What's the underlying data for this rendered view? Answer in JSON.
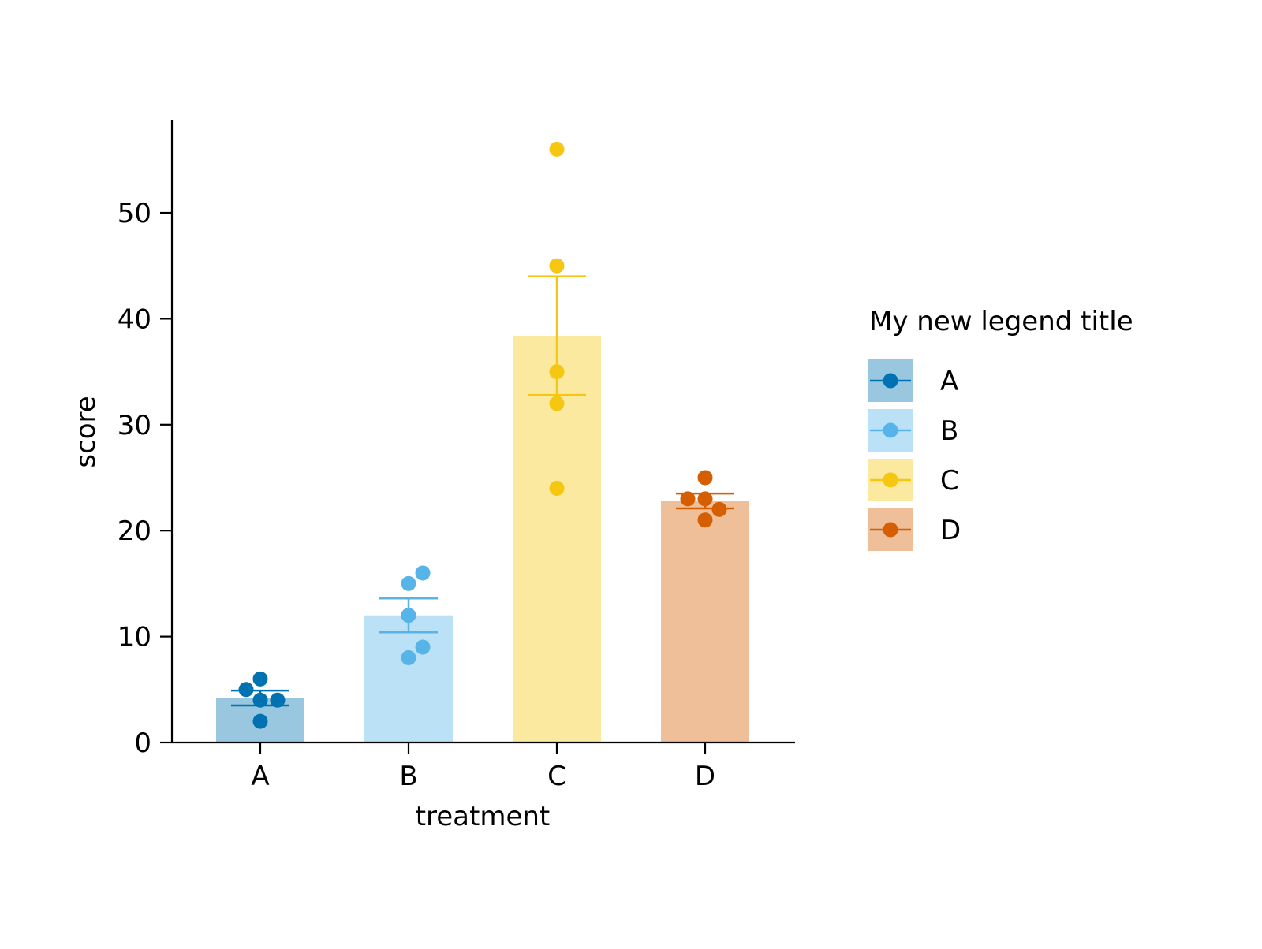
{
  "chart_data": {
    "type": "bar",
    "categories": [
      "A",
      "B",
      "C",
      "D"
    ],
    "xlabel": "treatment",
    "ylabel": "score",
    "ylim": [
      0,
      58.5
    ],
    "yticks": [
      0,
      10,
      20,
      30,
      40,
      50
    ],
    "grid": false,
    "legend": {
      "title": "My new legend title",
      "placement": "right",
      "entries": [
        "A",
        "B",
        "C",
        "D"
      ]
    },
    "colors": {
      "A": "#0072b2",
      "B": "#56b4e9",
      "C": "#f5c710",
      "D": "#d55e00"
    },
    "bars": [
      {
        "category": "A",
        "mean": 4.2,
        "error_low": 3.5,
        "error_high": 4.9,
        "points": [
          6,
          5,
          4,
          4,
          2
        ]
      },
      {
        "category": "B",
        "mean": 12.0,
        "error_low": 10.4,
        "error_high": 13.6,
        "points": [
          16,
          15,
          12,
          9,
          8
        ]
      },
      {
        "category": "C",
        "mean": 38.4,
        "error_low": 32.8,
        "error_high": 44.0,
        "points": [
          56,
          45,
          35,
          32,
          24
        ]
      },
      {
        "category": "D",
        "mean": 22.8,
        "error_low": 22.1,
        "error_high": 23.5,
        "points": [
          25,
          23,
          23,
          22,
          21
        ]
      }
    ]
  }
}
